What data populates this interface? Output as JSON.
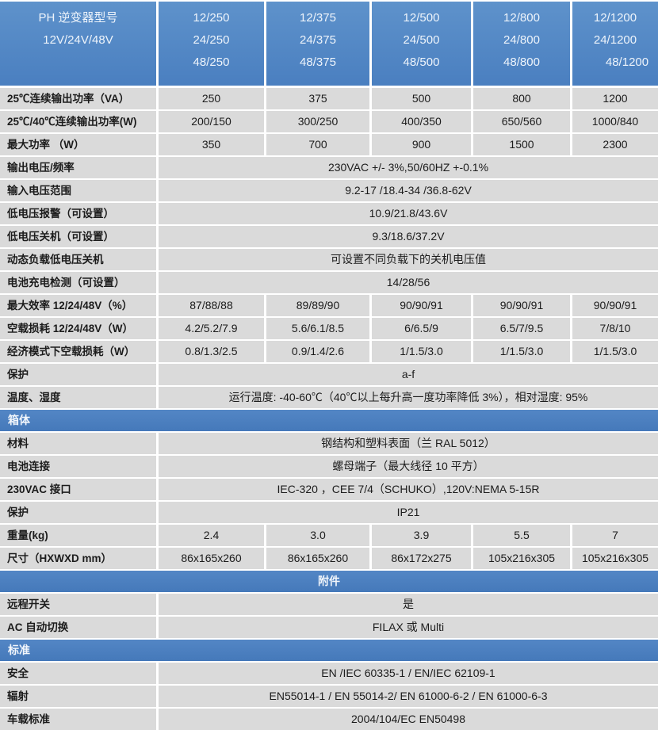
{
  "colors": {
    "header_blue_top": "#5e92cb",
    "header_blue_bottom": "#4a7fc0",
    "section_blue": "#4e82c2",
    "row_gray": "#dadada",
    "gap_white": "#ffffff",
    "header_text": "#eef4fb",
    "body_text": "#1c1c1c"
  },
  "header": {
    "product_label_line1": "PH 逆变器型号",
    "product_label_line2": "12V/24V/48V",
    "models": [
      {
        "lines": [
          "12/250",
          "24/250",
          "48/250"
        ]
      },
      {
        "lines": [
          "12/375",
          "24/375",
          "48/375"
        ]
      },
      {
        "lines": [
          "12/500",
          "24/500",
          "48/500"
        ]
      },
      {
        "lines": [
          "12/800",
          "24/800",
          "48/800"
        ]
      },
      {
        "lines": [
          "12/1200",
          "24/1200",
          "48/1200"
        ]
      }
    ]
  },
  "rows": [
    {
      "type": "data",
      "label": "25℃连续输出功率（VA）",
      "values": [
        "250",
        "375",
        "500",
        "800",
        "1200"
      ]
    },
    {
      "type": "data",
      "label": "25℃/40℃连续输出功率(W)",
      "values": [
        "200/150",
        "300/250",
        "400/350",
        "650/560",
        "1000/840"
      ]
    },
    {
      "type": "data",
      "label": "最大功率 （W）",
      "values": [
        "350",
        "700",
        "900",
        "1500",
        "2300"
      ]
    },
    {
      "type": "merged",
      "label": "输出电压/频率",
      "value": "230VAC +/- 3%,50/60HZ +-0.1%"
    },
    {
      "type": "merged",
      "label": "输入电压范围",
      "value": "9.2-17 /18.4-34 /36.8-62V"
    },
    {
      "type": "merged",
      "label": "低电压报警（可设置）",
      "value": "10.9/21.8/43.6V"
    },
    {
      "type": "merged",
      "label": "低电压关机（可设置）",
      "value": "9.3/18.6/37.2V"
    },
    {
      "type": "merged",
      "label": "动态负载低电压关机",
      "value": "可设置不同负载下的关机电压值"
    },
    {
      "type": "merged",
      "label": "电池充电检测（可设置）",
      "value": "14/28/56"
    },
    {
      "type": "data",
      "label": "最大效率 12/24/48V（%）",
      "values": [
        "87/88/88",
        "89/89/90",
        "90/90/91",
        "90/90/91",
        "90/90/91"
      ]
    },
    {
      "type": "data",
      "label": "空载损耗 12/24/48V（W）",
      "values": [
        "4.2/5.2/7.9",
        "5.6/6.1/8.5",
        "6/6.5/9",
        "6.5/7/9.5",
        "7/8/10"
      ]
    },
    {
      "type": "data",
      "label": "经济模式下空载损耗（W）",
      "values": [
        "0.8/1.3/2.5",
        "0.9/1.4/2.6",
        "1/1.5/3.0",
        "1/1.5/3.0",
        "1/1.5/3.0"
      ]
    },
    {
      "type": "merged",
      "label": "保护",
      "value": "a-f"
    },
    {
      "type": "merged",
      "label": "温度、湿度",
      "value": "运行温度: -40-60℃（40℃以上每升高一度功率降低 3%），相对湿度: 95%"
    },
    {
      "type": "section",
      "label": "箱体",
      "align": "left"
    },
    {
      "type": "merged",
      "label": "材料",
      "value": "钢结构和塑料表面（兰  RAL 5012）"
    },
    {
      "type": "merged",
      "label": "电池连接",
      "value": "螺母端子（最大线径 10 平方）"
    },
    {
      "type": "merged",
      "label": "230VAC 接口",
      "value": "IEC-320 ，CEE 7/4（SCHUKO）,120V:NEMA 5-15R"
    },
    {
      "type": "merged",
      "label": "保护",
      "value": "IP21"
    },
    {
      "type": "data",
      "label": "重量(kg)",
      "values": [
        "2.4",
        "3.0",
        "3.9",
        "5.5",
        "7"
      ]
    },
    {
      "type": "data",
      "label": "尺寸（HXWXD mm）",
      "values": [
        "86x165x260",
        "86x165x260",
        "86x172x275",
        "105x216x305",
        "105x216x305"
      ]
    },
    {
      "type": "section",
      "label": "附件",
      "align": "center"
    },
    {
      "type": "merged",
      "label": "远程开关",
      "value": "是"
    },
    {
      "type": "merged",
      "label": "AC 自动切换",
      "value": "FILAX 或 Multi"
    },
    {
      "type": "section",
      "label": "标准",
      "align": "left"
    },
    {
      "type": "merged",
      "label": "安全",
      "value": "EN /IEC 60335-1 / EN/IEC 62109-1"
    },
    {
      "type": "merged",
      "label": "辐射",
      "value": "EN55014-1 / EN 55014-2/ EN 61000-6-2 / EN 61000-6-3"
    },
    {
      "type": "merged",
      "label": "车载标准",
      "value": "2004/104/EC EN50498"
    }
  ]
}
